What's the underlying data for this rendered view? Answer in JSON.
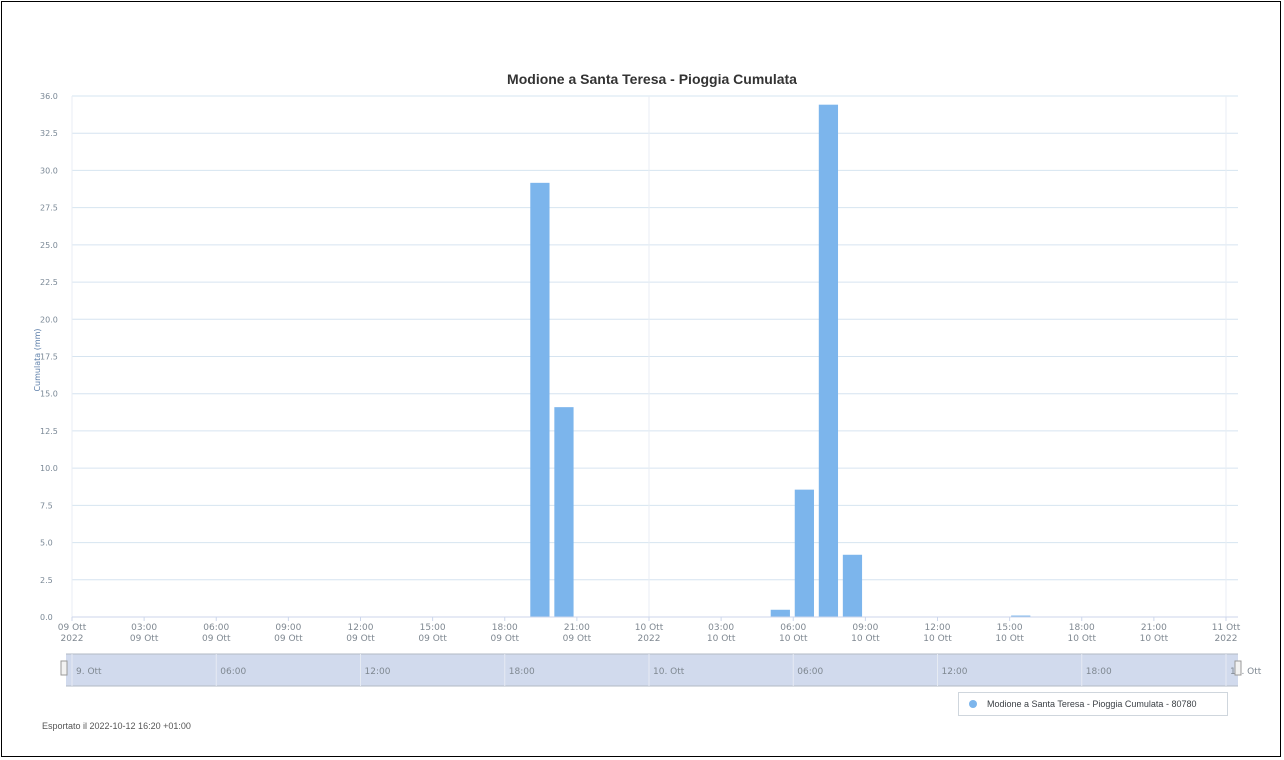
{
  "chart_data": {
    "type": "bar",
    "title": "Modione a Santa Teresa - Pioggia Cumulata",
    "ylabel": "Cumulata (mm)",
    "ylim": [
      0,
      36.0
    ],
    "yticks": [
      "0.0",
      "2.5",
      "5.0",
      "7.5",
      "10.0",
      "12.5",
      "15.0",
      "17.5",
      "20.0",
      "22.5",
      "25.0",
      "27.5",
      "30.0",
      "32.5",
      "36.0"
    ],
    "x_start_hours": 0,
    "x_end_hours": 54,
    "x_ticks": [
      {
        "h": 0,
        "l1": "09 Ott",
        "l2": "2022"
      },
      {
        "h": 3,
        "l1": "03:00",
        "l2": "09 Ott"
      },
      {
        "h": 6,
        "l1": "06:00",
        "l2": "09 Ott"
      },
      {
        "h": 9,
        "l1": "09:00",
        "l2": "09 Ott"
      },
      {
        "h": 12,
        "l1": "12:00",
        "l2": "09 Ott"
      },
      {
        "h": 15,
        "l1": "15:00",
        "l2": "09 Ott"
      },
      {
        "h": 18,
        "l1": "18:00",
        "l2": "09 Ott"
      },
      {
        "h": 21,
        "l1": "21:00",
        "l2": "09 Ott"
      },
      {
        "h": 24,
        "l1": "10 Ott",
        "l2": "2022"
      },
      {
        "h": 27,
        "l1": "03:00",
        "l2": "10 Ott"
      },
      {
        "h": 30,
        "l1": "06:00",
        "l2": "10 Ott"
      },
      {
        "h": 33,
        "l1": "09:00",
        "l2": "10 Ott"
      },
      {
        "h": 36,
        "l1": "12:00",
        "l2": "10 Ott"
      },
      {
        "h": 39,
        "l1": "15:00",
        "l2": "10 Ott"
      },
      {
        "h": 42,
        "l1": "18:00",
        "l2": "10 Ott"
      },
      {
        "h": 45,
        "l1": "21:00",
        "l2": "10 Ott"
      },
      {
        "h": 48,
        "l1": "11 Ott",
        "l2": "2022"
      }
    ],
    "bars": [
      {
        "time": "09 Ott 19:00",
        "h": 19,
        "value": 30.0
      },
      {
        "time": "09 Ott 20:00",
        "h": 20,
        "value": 14.5
      },
      {
        "time": "10 Ott 05:00",
        "h": 29,
        "value": 0.5
      },
      {
        "time": "10 Ott 06:00",
        "h": 30,
        "value": 8.8
      },
      {
        "time": "10 Ott 07:00",
        "h": 31,
        "value": 35.4
      },
      {
        "time": "10 Ott 08:00",
        "h": 32,
        "value": 4.3
      },
      {
        "time": "10 Ott 15:00",
        "h": 39,
        "value": 0.1
      }
    ],
    "series_name": "Modione a Santa Teresa - Pioggia Cumulata - 80780",
    "bar_color": "#7cb5ec",
    "grid": true,
    "legend_position": "bottom-right"
  },
  "navigator": {
    "labels": [
      {
        "h": 0,
        "text": "9. Ott"
      },
      {
        "h": 6,
        "text": "06:00"
      },
      {
        "h": 12,
        "text": "12:00"
      },
      {
        "h": 18,
        "text": "18:00"
      },
      {
        "h": 24,
        "text": "10. Ott"
      },
      {
        "h": 30,
        "text": "06:00"
      },
      {
        "h": 36,
        "text": "12:00"
      },
      {
        "h": 42,
        "text": "18:00"
      },
      {
        "h": 48,
        "text": "11. Ott"
      }
    ],
    "mask_color": "#ccd6eb"
  },
  "footer": {
    "exported": "Esportato il 2022-10-12 16:20 +01:00"
  }
}
